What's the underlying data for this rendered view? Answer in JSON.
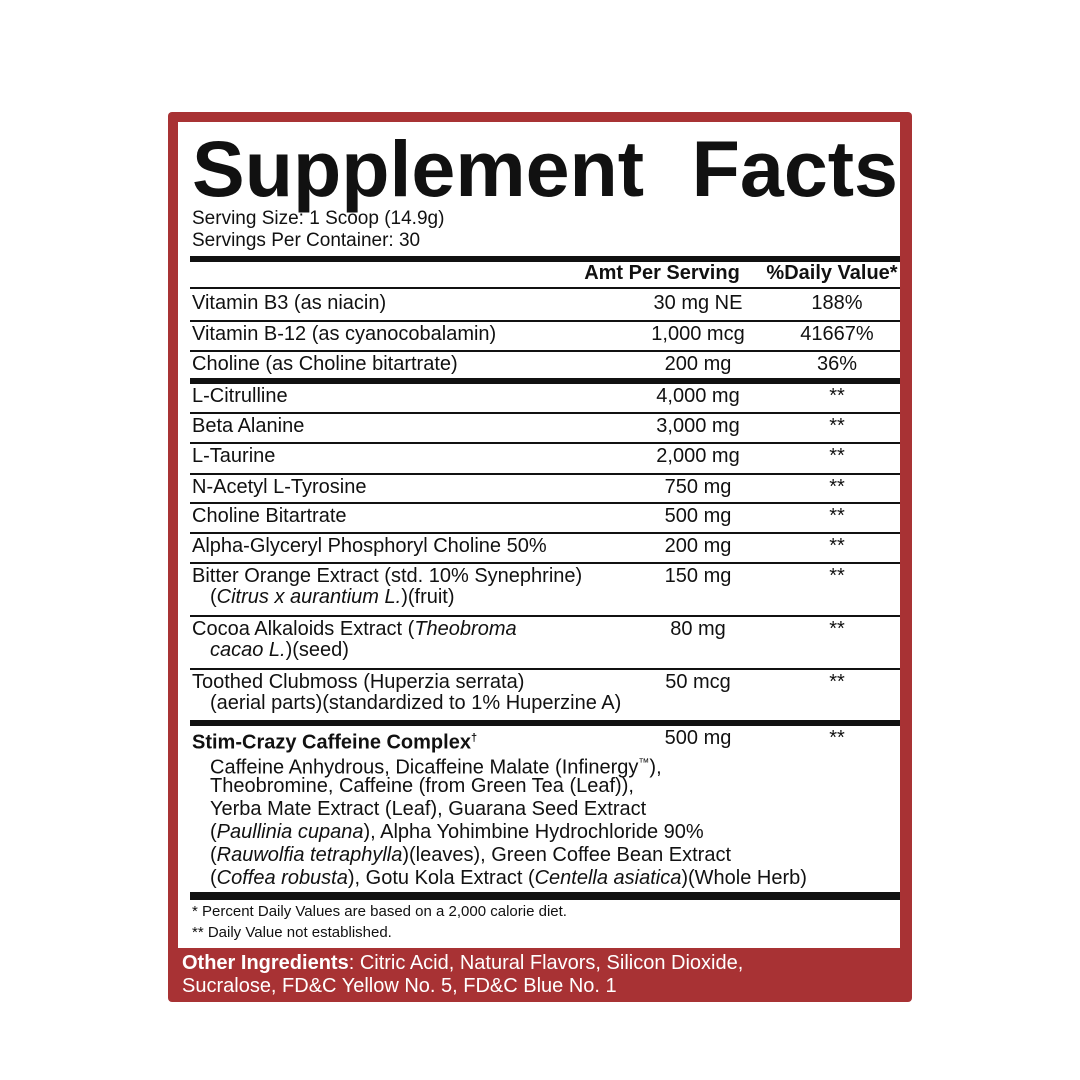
{
  "title": [
    "Supplement",
    "Facts"
  ],
  "serving_size": "Serving Size: 1 Scoop (14.9g)",
  "servings_per_container": "Servings Per Container: 30",
  "columns": {
    "amount": "Amt Per Serving",
    "daily_value": "%Daily Value*"
  },
  "rows": [
    {
      "name": "Vitamin B3 (as niacin)",
      "amount": "30 mg NE",
      "dv": "188%"
    },
    {
      "name": "Vitamin B-12 (as cyanocobalamin)",
      "amount": "1,000 mcg",
      "dv": "41667%"
    },
    {
      "name": "Choline (as Choline bitartrate)",
      "amount": "200 mg",
      "dv": "36%"
    },
    {
      "name": "L-Citrulline",
      "amount": "4,000 mg",
      "dv": "**"
    },
    {
      "name": "Beta Alanine",
      "amount": "3,000 mg",
      "dv": "**"
    },
    {
      "name": "L-Taurine",
      "amount": "2,000 mg",
      "dv": "**"
    },
    {
      "name": "N-Acetyl L-Tyrosine",
      "amount": "750 mg",
      "dv": "**"
    },
    {
      "name": "Choline Bitartrate",
      "amount": "500 mg",
      "dv": "**"
    },
    {
      "name": "Alpha-Glyceryl Phosphoryl Choline 50%",
      "amount": "200 mg",
      "dv": "**"
    },
    {
      "name": "Bitter Orange Extract (std. 10% Synephrine)",
      "sub_pre": "(",
      "sub_italic": "Citrus x aurantium L.",
      "sub_post": ")(fruit)",
      "amount": "150 mg",
      "dv": "**"
    },
    {
      "name_pre": "Cocoa Alkaloids Extract (",
      "name_italic": "Theobroma",
      "sub_italic": "cacao L.",
      "sub_post": ")(seed)",
      "amount": "80 mg",
      "dv": "**"
    },
    {
      "name": "Toothed Clubmoss (Huperzia serrata)",
      "sub_post": "(aerial parts)(standardized to 1% Huperzine A)",
      "amount": "50 mcg",
      "dv": "**"
    }
  ],
  "complex": {
    "name": "Stim-Crazy Caffeine Complex",
    "dagger": "†",
    "amount": "500 mg",
    "dv": "**",
    "lines": [
      [
        "Caffeine Anhydrous, Dicaffeine Malate (Infinergy",
        "™",
        "),"
      ],
      [
        "Theobromine, Caffeine (from Green Tea (Leaf)),"
      ],
      [
        "Yerba Mate Extract (Leaf), Guarana Seed Extract"
      ],
      [
        "(",
        "Paullinia cupana",
        "), Alpha Yohimbine Hydrochloride 90%"
      ],
      [
        "(",
        "Rauwolfia tetraphylla",
        ")(leaves), Green Coffee Bean Extract"
      ],
      [
        "(",
        "Coffea robusta",
        "), Gotu Kola Extract (",
        "Centella asiatica",
        ")(Whole Herb)"
      ]
    ]
  },
  "footnotes": [
    "* Percent Daily Values are based on a 2,000 calorie diet.",
    "** Daily Value not established."
  ],
  "other_ingredients": {
    "label": "Other Ingredients",
    "line1": ": Citric Acid, Natural Flavors, Silicon Dioxide,",
    "line2": "Sucralose, FD&C Yellow No. 5, FD&C Blue No. 1"
  },
  "colors": {
    "border": "#a83234",
    "text": "#111111"
  }
}
